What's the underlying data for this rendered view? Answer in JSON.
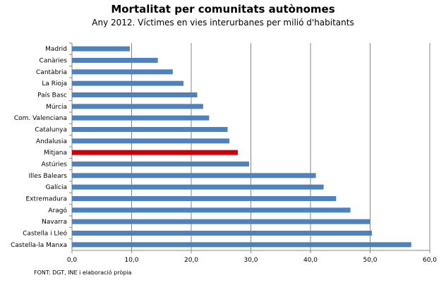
{
  "chart_data": {
    "type": "bar",
    "orientation": "horizontal",
    "title": "Mortalitat per comunitats autònomes",
    "subtitle": "Any 2012. Víctimes en vies interurbanes  per milió d'habitants",
    "categories": [
      "Madrid",
      "Canàries",
      "Cantàbria",
      "La Rioja",
      "País Basc",
      "Múrcia",
      "Com. Valenciana",
      "Catalunya",
      "Andalusia",
      "Mitjana",
      "Astúries",
      "Illes Balears",
      "Galícia",
      "Extremadura",
      "Aragó",
      "Navarra",
      "Castella i Lleó",
      "Castella-la Manxa"
    ],
    "values": [
      9.7,
      14.4,
      16.9,
      18.7,
      21.0,
      22.0,
      23.0,
      26.1,
      26.4,
      27.8,
      29.7,
      40.9,
      42.2,
      44.3,
      46.7,
      50.0,
      50.3,
      56.9
    ],
    "highlight": "Mitjana",
    "xlim": [
      0,
      60
    ],
    "xticks": [
      "0,0",
      "10,0",
      "20,0",
      "30,0",
      "40,0",
      "50,0",
      "60,0"
    ],
    "grid": "vertical",
    "colors": {
      "bar": "#4F81BD",
      "highlight": "#CC0000",
      "grid": "#868686"
    },
    "source": "FONT: DGT, INE i elaboració pròpia"
  }
}
